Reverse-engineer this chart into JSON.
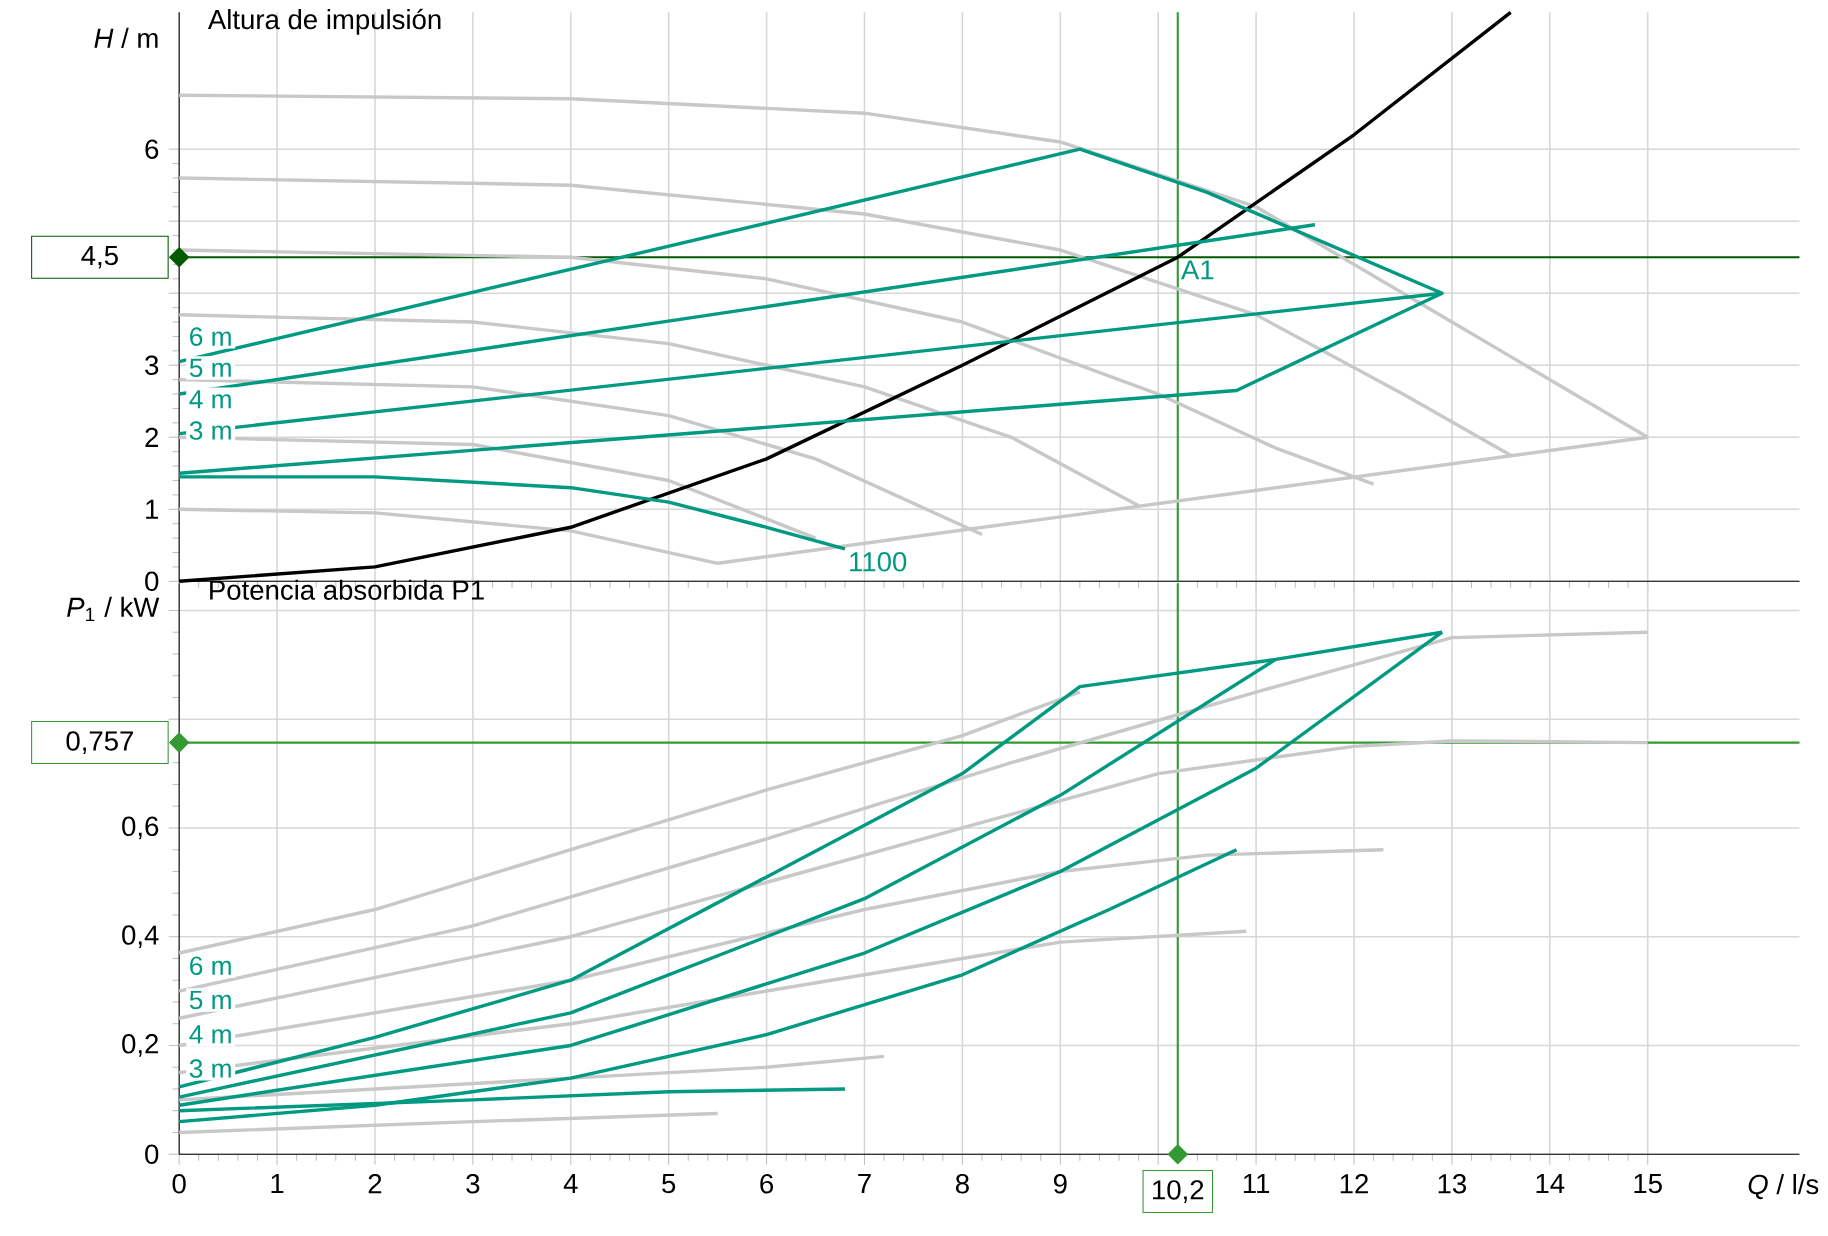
{
  "chart_data": [
    {
      "type": "line",
      "title": "Altura de impulsión",
      "ylabel": "*H* / m",
      "xlim": [
        0,
        16.55
      ],
      "ylim": [
        0,
        7.9
      ],
      "xticks": [
        0,
        1,
        2,
        3,
        4,
        5,
        6,
        7,
        8,
        9,
        10,
        11,
        12,
        13,
        14,
        15
      ],
      "yticks": [
        0,
        1,
        2,
        3,
        {
          "value": 4,
          "label": null
        },
        {
          "value": 5,
          "label": null
        },
        6
      ],
      "tick_labels": "y",
      "grid": true,
      "series": [
        {
          "color": "#c8c8c8",
          "x": [
            0,
            4,
            7,
            9,
            11,
            13,
            15
          ],
          "values": [
            6.75,
            6.7,
            6.5,
            6.1,
            5.2,
            3.6,
            2.0
          ]
        },
        {
          "color": "#c8c8c8",
          "x": [
            0,
            4,
            7,
            9,
            11,
            12.5,
            13.6
          ],
          "values": [
            5.6,
            5.5,
            5.1,
            4.6,
            3.7,
            2.6,
            1.75
          ]
        },
        {
          "color": "#c8c8c8",
          "x": [
            0,
            4,
            6,
            8,
            10,
            11.2,
            12.2
          ],
          "values": [
            4.6,
            4.5,
            4.2,
            3.6,
            2.6,
            1.85,
            1.35
          ]
        },
        {
          "color": "#c8c8c8",
          "x": [
            0,
            3,
            5,
            7,
            8.5,
            9.8
          ],
          "values": [
            3.7,
            3.6,
            3.3,
            2.7,
            2.0,
            1.05
          ]
        },
        {
          "color": "#c8c8c8",
          "x": [
            0,
            3,
            5,
            6.5,
            8.2
          ],
          "values": [
            2.8,
            2.7,
            2.3,
            1.7,
            0.65
          ]
        },
        {
          "color": "#c8c8c8",
          "x": [
            0,
            3,
            5,
            6.5
          ],
          "values": [
            2.0,
            1.9,
            1.4,
            0.6
          ]
        },
        {
          "color": "#c8c8c8",
          "x": [
            0,
            2,
            4,
            5.5,
            15
          ],
          "values": [
            1.0,
            0.95,
            0.7,
            0.25,
            2.0
          ]
        },
        {
          "color": "#000000",
          "x": [
            0,
            2,
            4,
            6,
            8,
            10.2,
            12,
            13.6
          ],
          "values": [
            0,
            0.2,
            0.75,
            1.7,
            3.0,
            4.5,
            6.2,
            7.9
          ]
        },
        {
          "color": "#009982",
          "x": [
            0,
            9.2,
            10.5,
            12.9,
            10.8,
            0
          ],
          "values": [
            3.05,
            6.0,
            5.4,
            4.0,
            2.65,
            1.5
          ]
        },
        {
          "color": "#009982",
          "x": [
            0,
            11.6
          ],
          "values": [
            2.6,
            4.95
          ]
        },
        {
          "color": "#009982",
          "x": [
            0,
            12.9
          ],
          "values": [
            2.05,
            4.0
          ]
        },
        {
          "color": "#009982",
          "x": [
            0,
            2,
            4,
            5,
            6,
            6.8
          ],
          "values": [
            1.45,
            1.45,
            1.3,
            1.1,
            0.75,
            0.45
          ]
        }
      ],
      "ref_lines": [
        {
          "axis": "y",
          "value": 4.5,
          "label": "4,5",
          "color": "#005a00"
        },
        {
          "axis": "x",
          "value": 10.2,
          "label": null,
          "color": "#339933"
        }
      ],
      "annotations": [
        "6 m",
        "5 m",
        "4 m",
        "3 m",
        {
          "text": "1100",
          "x": 6.8,
          "y": 0.45
        },
        {
          "text": "A1",
          "x": 10.2,
          "y": 4.5
        }
      ]
    },
    {
      "type": "line",
      "title": "Potencia absorbida P1",
      "ylabel": "*P*$_{1}$ / kW",
      "xlabel": "*Q* / l/s",
      "xlim": [
        0,
        16.55
      ],
      "ylim": [
        0,
        1.05
      ],
      "xticks": [
        0,
        1,
        2,
        3,
        4,
        5,
        6,
        7,
        8,
        9,
        {
          "value": 10,
          "label": null
        },
        11,
        12,
        13,
        14,
        15
      ],
      "yticks": [
        0,
        {
          "value": 0.2,
          "label": "0,2"
        },
        {
          "value": 0.4,
          "label": "0,4"
        },
        {
          "value": 0.6,
          "label": "0,6"
        },
        {
          "value": 0.8,
          "label": null
        },
        {
          "value": 1.0,
          "label": null
        }
      ],
      "grid": true,
      "series": [
        {
          "color": "#c8c8c8",
          "x": [
            0,
            2,
            4,
            6,
            8,
            9.2
          ],
          "values": [
            0.37,
            0.45,
            0.56,
            0.67,
            0.77,
            0.85
          ]
        },
        {
          "color": "#c8c8c8",
          "x": [
            0,
            3,
            6,
            8.5,
            11,
            13,
            15
          ],
          "values": [
            0.3,
            0.42,
            0.58,
            0.72,
            0.85,
            0.95,
            0.96
          ]
        },
        {
          "color": "#c8c8c8",
          "x": [
            0,
            4,
            8,
            10,
            12,
            13,
            15
          ],
          "values": [
            0.25,
            0.4,
            0.6,
            0.7,
            0.75,
            0.76,
            0.757
          ]
        },
        {
          "color": "#c8c8c8",
          "x": [
            0,
            4,
            7,
            9,
            10.5,
            12.3
          ],
          "values": [
            0.2,
            0.32,
            0.45,
            0.52,
            0.55,
            0.56
          ]
        },
        {
          "color": "#c8c8c8",
          "x": [
            0,
            4,
            7,
            9,
            10.9
          ],
          "values": [
            0.15,
            0.24,
            0.33,
            0.39,
            0.41
          ]
        },
        {
          "color": "#c8c8c8",
          "x": [
            0,
            4,
            6,
            7.2
          ],
          "values": [
            0.1,
            0.14,
            0.16,
            0.18
          ]
        },
        {
          "color": "#c8c8c8",
          "x": [
            0,
            3,
            5.5
          ],
          "values": [
            0.04,
            0.06,
            0.075
          ]
        },
        {
          "color": "#009982",
          "x": [
            0,
            2,
            4,
            6,
            8,
            9.2,
            11.2,
            12.9
          ],
          "values": [
            0.124,
            0.215,
            0.32,
            0.51,
            0.7,
            0.86,
            0.91,
            0.96
          ]
        },
        {
          "color": "#009982",
          "x": [
            0,
            4,
            7,
            9,
            11.2
          ],
          "values": [
            0.105,
            0.26,
            0.47,
            0.66,
            0.91
          ]
        },
        {
          "color": "#009982",
          "x": [
            0,
            4,
            7,
            9,
            11,
            12.9
          ],
          "values": [
            0.09,
            0.2,
            0.37,
            0.52,
            0.71,
            0.96
          ]
        },
        {
          "color": "#009982",
          "x": [
            0,
            2,
            4,
            6,
            8,
            9.5,
            10.8
          ],
          "values": [
            0.06,
            0.09,
            0.14,
            0.22,
            0.33,
            0.45,
            0.56
          ]
        },
        {
          "color": "#009982",
          "x": [
            0,
            3,
            5,
            6.8
          ],
          "values": [
            0.08,
            0.1,
            0.115,
            0.12
          ]
        }
      ],
      "ref_lines": [
        {
          "axis": "y",
          "value": 0.757,
          "label": "0,757",
          "color": "#339933"
        },
        {
          "axis": "x",
          "value": 10.2,
          "label": "10,2",
          "color": "#339933"
        }
      ],
      "annotations": [
        "6 m",
        "5 m",
        "4 m",
        "3 m"
      ]
    }
  ]
}
